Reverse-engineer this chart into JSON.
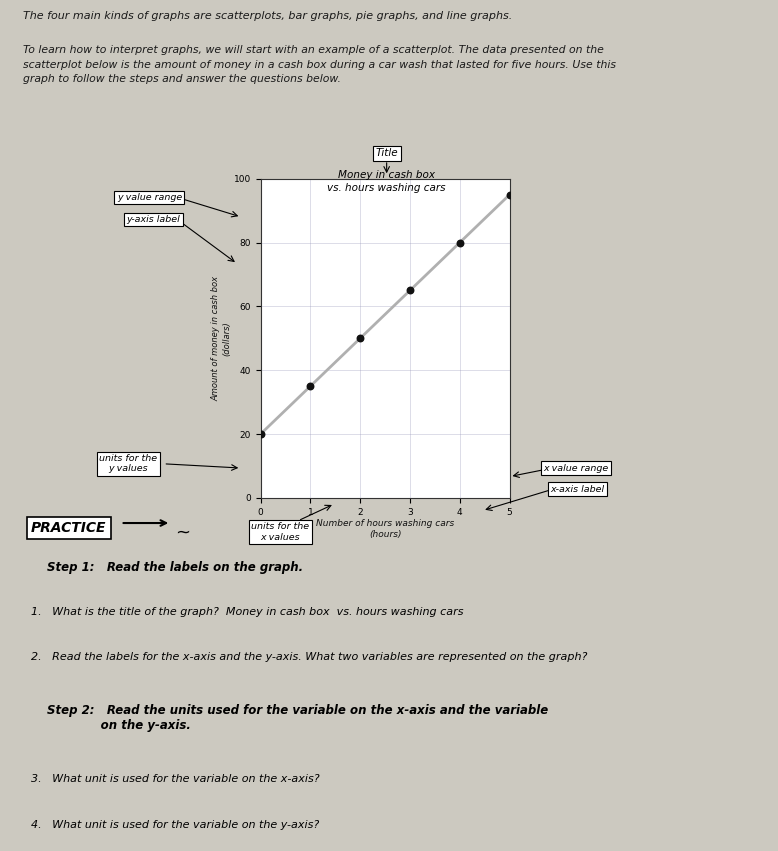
{
  "bg_color": "#ccc9c0",
  "chart_bg": "#e8e6e0",
  "intro_text_1": "The four main kinds of graphs are scatterplots, bar graphs, pie graphs, and line graphs.",
  "intro_text_2": "To learn how to interpret graphs, we will start with an example of a scatterplot. The data presented on the\nscatterplot below is the amount of money in a cash box during a car wash that lasted for five hours. Use this\ngraph to follow the steps and answer the questions below.",
  "chart_title": "Money in cash box\nvs. hours washing cars",
  "ylabel": "Amount of money in cash box\n(dollars)",
  "xlabel": "Number of hours washing cars\n(hours)",
  "x_data": [
    0,
    1,
    2,
    3,
    4,
    5
  ],
  "y_data": [
    20,
    35,
    50,
    65,
    80,
    95
  ],
  "x_lim": [
    0,
    5
  ],
  "y_lim": [
    0,
    100
  ],
  "x_ticks": [
    0,
    1,
    2,
    3,
    4,
    5
  ],
  "y_ticks": [
    0,
    20,
    40,
    60,
    80,
    100
  ],
  "practice_text": "PRACTICE",
  "step1_text": "Step 1:   Read the labels on the graph.",
  "q1_text": "1.   What is the title of the graph?  Money in cash box  vs. hours washing cars",
  "q2_text": "2.   Read the labels for the x-axis and the y-axis. What two variables are represented on the graph?",
  "step2_text": "Step 2:   Read the units used for the variable on the x-axis and the variable\n             on the y-axis.",
  "q3_text": "3.   What unit is used for the variable on the x-axis?",
  "q4_text": "4.   What unit is used for the variable on the y-axis?"
}
